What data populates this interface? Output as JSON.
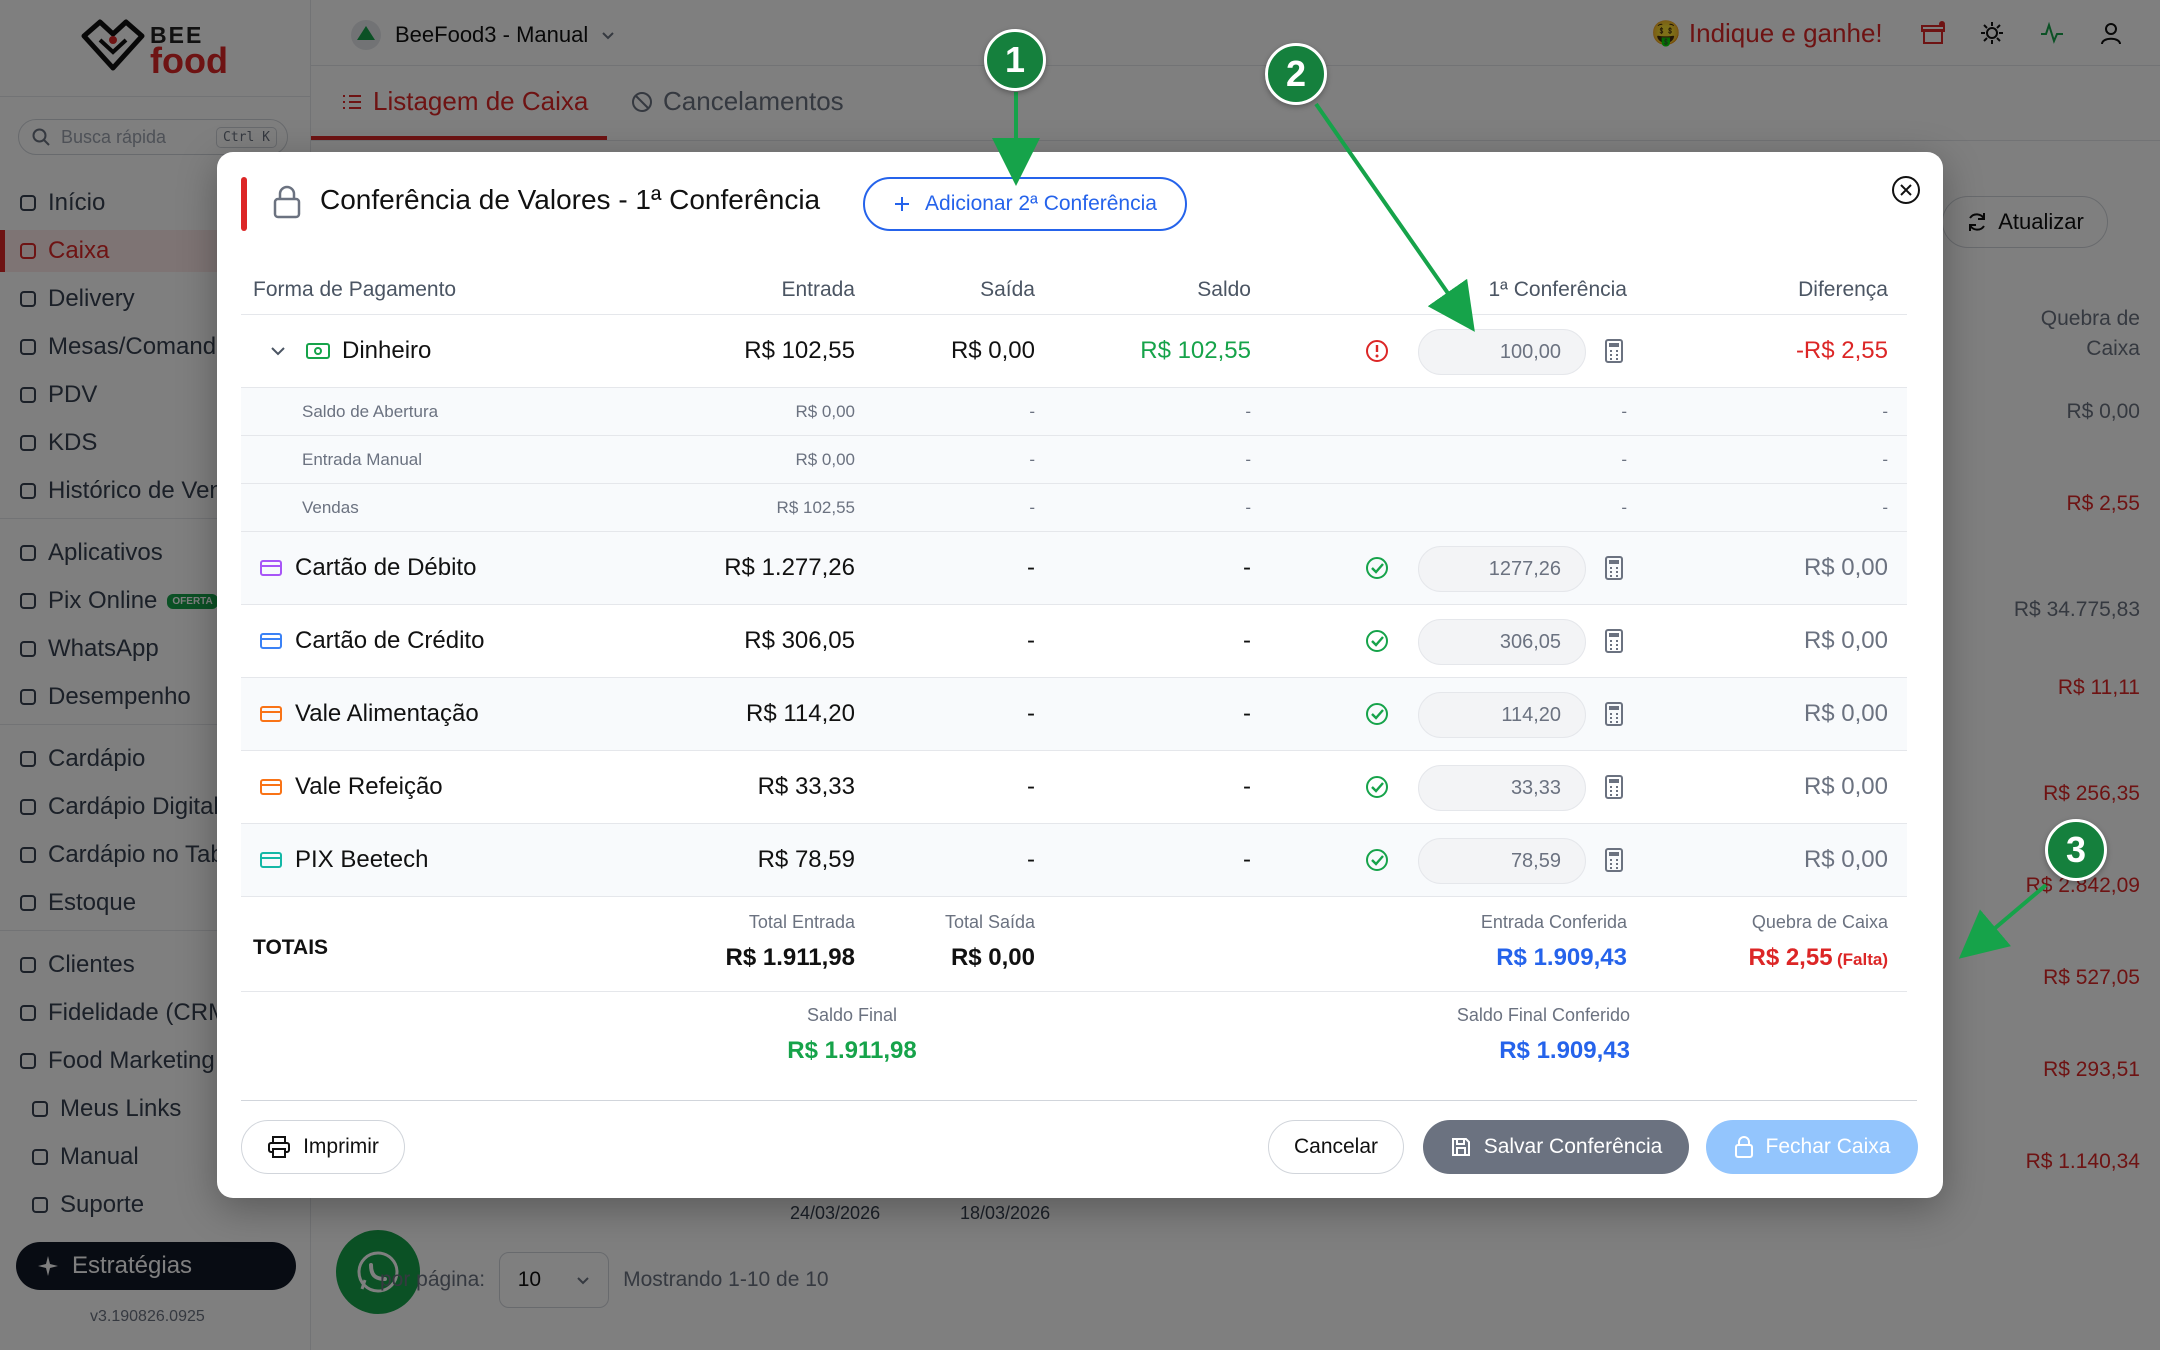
{
  "sidebar": {
    "logo_top": "BEE",
    "logo_bottom": "food",
    "search_placeholder": "Busca rápida",
    "search_shortcut": "Ctrl K",
    "items": [
      {
        "label": "Início",
        "icon": "home-icon"
      },
      {
        "label": "Caixa",
        "icon": "register-icon",
        "active": true
      },
      {
        "label": "Delivery",
        "icon": "bike-icon"
      },
      {
        "label": "Mesas/Comandas",
        "icon": "table-icon"
      },
      {
        "label": "PDV",
        "icon": "cart-icon"
      },
      {
        "label": "KDS",
        "icon": "chef-icon"
      },
      {
        "label": "Histórico de Vendas",
        "icon": "chart-icon"
      },
      {
        "label": "Aplicativos",
        "icon": "phone-icon"
      },
      {
        "label": "Pix Online",
        "icon": "pix-icon",
        "badge": "OFERTA"
      },
      {
        "label": "WhatsApp",
        "icon": "chat-icon"
      },
      {
        "label": "Desempenho",
        "icon": "chart-icon"
      },
      {
        "label": "Cardápio",
        "icon": "book-icon"
      },
      {
        "label": "Cardápio Digital",
        "icon": "globe-icon"
      },
      {
        "label": "Cardápio no Tablet",
        "icon": "tablet-icon"
      },
      {
        "label": "Estoque",
        "icon": "boxes-icon"
      },
      {
        "label": "Clientes",
        "icon": "users-icon"
      },
      {
        "label": "Fidelidade (CRM)",
        "icon": "heart-icon"
      },
      {
        "label": "Food Marketing",
        "icon": "rocket-icon"
      },
      {
        "label": "Meus Links",
        "icon": "link-icon"
      },
      {
        "label": "Manual",
        "icon": "book-icon"
      },
      {
        "label": "Suporte",
        "icon": "headset-icon"
      }
    ],
    "strategies_label": "Estratégias",
    "version": "v3.190826.0925"
  },
  "topbar": {
    "store_name": "BeeFood3 - Manual",
    "referral": "Indique e ganhe!"
  },
  "tabs": [
    {
      "label": "Listagem de Caixa",
      "active": true
    },
    {
      "label": "Cancelamentos",
      "active": false
    }
  ],
  "background": {
    "refresh_label": "Atualizar",
    "column_header": "Quebra de Caixa",
    "column_values": [
      "R$ 0,00",
      "R$ 2,55",
      "R$ 34.775,83",
      "R$ 11,11",
      "R$ 256,35",
      "R$ 2.842,09",
      "R$ 527,05",
      "R$ 293,51",
      "R$ 1.140,34"
    ],
    "dates": [
      "24/03/2026",
      "18/03/2026"
    ],
    "per_page_label": "por página:",
    "per_page_value": "10",
    "showing": "Mostrando 1-10 de 10"
  },
  "modal": {
    "title": "Conferência de Valores - 1ª Conferência",
    "add_second_label": "Adicionar 2ª Conferência",
    "columns": {
      "method": "Forma de Pagamento",
      "entrada": "Entrada",
      "saida": "Saída",
      "saldo": "Saldo",
      "conf1": "1ª Conferência",
      "diff": "Diferença"
    },
    "cash": {
      "name": "Dinheiro",
      "entrada": "R$ 102,55",
      "saida": "R$ 0,00",
      "saldo": "R$ 102,55",
      "conf_value": "100,00",
      "diff": "-R$ 2,55",
      "status": "error"
    },
    "sub_rows": [
      {
        "name": "Saldo de Abertura",
        "entrada": "R$ 0,00",
        "saida": "-",
        "saldo": "-",
        "conf": "-",
        "diff": "-"
      },
      {
        "name": "Entrada Manual",
        "entrada": "R$ 0,00",
        "saida": "-",
        "saldo": "-",
        "conf": "-",
        "diff": "-"
      },
      {
        "name": "Vendas",
        "entrada": "R$ 102,55",
        "saida": "-",
        "saldo": "-",
        "conf": "-",
        "diff": "-"
      }
    ],
    "rows": [
      {
        "name": "Cartão de Débito",
        "icon": "debit-card-icon",
        "entrada": "R$ 1.277,26",
        "saida": "-",
        "saldo": "-",
        "conf_value": "1277,26",
        "diff": "R$ 0,00",
        "color": "#a855f7"
      },
      {
        "name": "Cartão de Crédito",
        "icon": "credit-card-icon",
        "entrada": "R$ 306,05",
        "saida": "-",
        "saldo": "-",
        "conf_value": "306,05",
        "diff": "R$ 0,00",
        "color": "#3b82f6"
      },
      {
        "name": "Vale Alimentação",
        "icon": "utensils-icon",
        "entrada": "R$ 114,20",
        "saida": "-",
        "saldo": "-",
        "conf_value": "114,20",
        "diff": "R$ 0,00",
        "color": "#f97316"
      },
      {
        "name": "Vale Refeição",
        "icon": "coffee-icon",
        "entrada": "R$ 33,33",
        "saida": "-",
        "saldo": "-",
        "conf_value": "33,33",
        "diff": "R$ 0,00",
        "color": "#f97316"
      },
      {
        "name": "PIX Beetech",
        "icon": "qrcode-icon",
        "entrada": "R$ 78,59",
        "saida": "-",
        "saldo": "-",
        "conf_value": "78,59",
        "diff": "R$ 0,00",
        "color": "#14b8a6"
      }
    ],
    "totals": {
      "label": "TOTAIS",
      "entrada_label": "Total Entrada",
      "entrada": "R$ 1.911,98",
      "saida_label": "Total Saída",
      "saida": "R$ 0,00",
      "conferida_label": "Entrada Conferida",
      "conferida": "R$ 1.909,43",
      "quebra_label": "Quebra de Caixa",
      "quebra": "R$ 2,55",
      "quebra_tag": "(Falta)"
    },
    "final": {
      "saldo_label": "Saldo Final",
      "saldo": "R$ 1.911,98",
      "conferido_label": "Saldo Final Conferido",
      "conferido": "R$ 1.909,43"
    },
    "buttons": {
      "print": "Imprimir",
      "cancel": "Cancelar",
      "save": "Salvar Conferência",
      "close_register": "Fechar Caixa"
    }
  },
  "annotations": [
    "1",
    "2",
    "3"
  ],
  "colors": {
    "accent": "#dc2626",
    "blue": "#2563eb",
    "green": "#16a34a",
    "annotation": "#15803d"
  }
}
